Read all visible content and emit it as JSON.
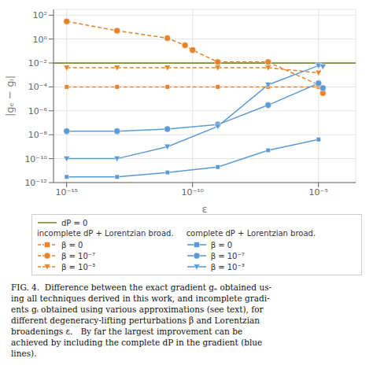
{
  "chart_data": {
    "type": "line",
    "log": true,
    "grid": true,
    "legend": "bottom",
    "xlabel": "ε",
    "ylabel": "|gₑ − gᵢ|",
    "xlim": [
      3e-16,
      0.0003
    ],
    "ylim": [
      1e-12,
      300
    ],
    "xticks": [
      {
        "value": 1e-15,
        "label": "10⁻¹⁵"
      },
      {
        "value": 1e-10,
        "label": "10⁻¹⁰"
      },
      {
        "value": 1e-05,
        "label": "10⁻⁵"
      }
    ],
    "yticks": [
      {
        "value": 1e-12,
        "label": "10⁻¹²"
      },
      {
        "value": 1e-10,
        "label": "10⁻¹⁰"
      },
      {
        "value": 1e-08,
        "label": "10⁻⁸"
      },
      {
        "value": 1e-06,
        "label": "10⁻⁶"
      },
      {
        "value": 0.0001,
        "label": "10⁻⁴"
      },
      {
        "value": 0.01,
        "label": "10⁻²"
      },
      {
        "value": 1,
        "label": "10⁰"
      },
      {
        "value": 100,
        "label": "10²"
      }
    ],
    "series": [
      {
        "name": "dP = 0",
        "type": "hline",
        "color": "#7A8C3A",
        "line_style": "solid",
        "values": [
          0.01
        ]
      },
      {
        "name": "β = 0",
        "group": "incomplete dP + Lorentzian broad.",
        "color": "#E8832A",
        "line_style": "dashed",
        "marker": "square",
        "x": [
          1e-15,
          1e-13,
          1e-11,
          1e-09,
          1e-07,
          1e-05
        ],
        "values": [
          0.0001,
          0.0001,
          0.0001,
          0.0001,
          0.0001,
          0.0001
        ]
      },
      {
        "name": "β = 10⁻⁷",
        "group": "incomplete dP + Lorentzian broad.",
        "color": "#E8832A",
        "line_style": "dashed",
        "marker": "circle",
        "x": [
          1e-15,
          1e-13,
          1e-11,
          5e-11,
          1e-10,
          1e-09,
          1e-07,
          1e-05,
          1.5e-05
        ],
        "values": [
          30,
          5,
          1.2,
          0.3,
          0.12,
          0.012,
          0.012,
          0.00015,
          3e-05
        ]
      },
      {
        "name": "β = 10⁻³",
        "group": "incomplete dP + Lorentzian broad.",
        "color": "#E8832A",
        "line_style": "dashed",
        "marker": "triangle_down",
        "x": [
          1e-15,
          1e-13,
          1e-11,
          1e-09,
          1e-07,
          1e-05,
          1.5e-05
        ],
        "values": [
          0.004,
          0.004,
          0.004,
          0.004,
          0.004,
          0.0015,
          0.005
        ]
      },
      {
        "name": "β = 0",
        "group": "complete dP + Lorentzian broad.",
        "color": "#5B9BD5",
        "line_style": "solid",
        "marker": "square",
        "x": [
          1e-15,
          1e-13,
          1e-11,
          1e-09,
          1e-07,
          1e-05
        ],
        "values": [
          3e-12,
          3e-12,
          7e-12,
          2e-11,
          5e-10,
          4e-09
        ]
      },
      {
        "name": "β = 10⁻⁷",
        "group": "complete dP + Lorentzian broad.",
        "color": "#5B9BD5",
        "line_style": "solid",
        "marker": "circle",
        "x": [
          1e-15,
          1e-13,
          1e-11,
          1e-09,
          1e-07,
          1e-05,
          1.5e-05
        ],
        "values": [
          2e-08,
          2e-08,
          3e-08,
          7e-08,
          3e-06,
          0.0002,
          8e-05
        ]
      },
      {
        "name": "β = 10⁻³",
        "group": "complete dP + Lorentzian broad.",
        "color": "#5B9BD5",
        "line_style": "solid",
        "marker": "triangle_down",
        "x": [
          1e-15,
          1e-13,
          1e-11,
          1e-09,
          1e-07,
          1e-05,
          1.5e-05
        ],
        "values": [
          1e-10,
          1e-10,
          1e-09,
          5e-08,
          0.00015,
          0.006,
          0.005
        ]
      }
    ],
    "caption": [
      "FIG. 4.  Difference between the exact gradient gₑ obtained us-",
      "ing all techniques derived in this work, and incomplete gradi-",
      "ents gᵢ obtained using various approximations (see text), for",
      "different degeneracy-lifting perturbations β and Lorentzian",
      "broadenings ε.   By far the largest improvement can be",
      "achieved by including the complete dP in the gradient (blue",
      "lines)."
    ]
  }
}
